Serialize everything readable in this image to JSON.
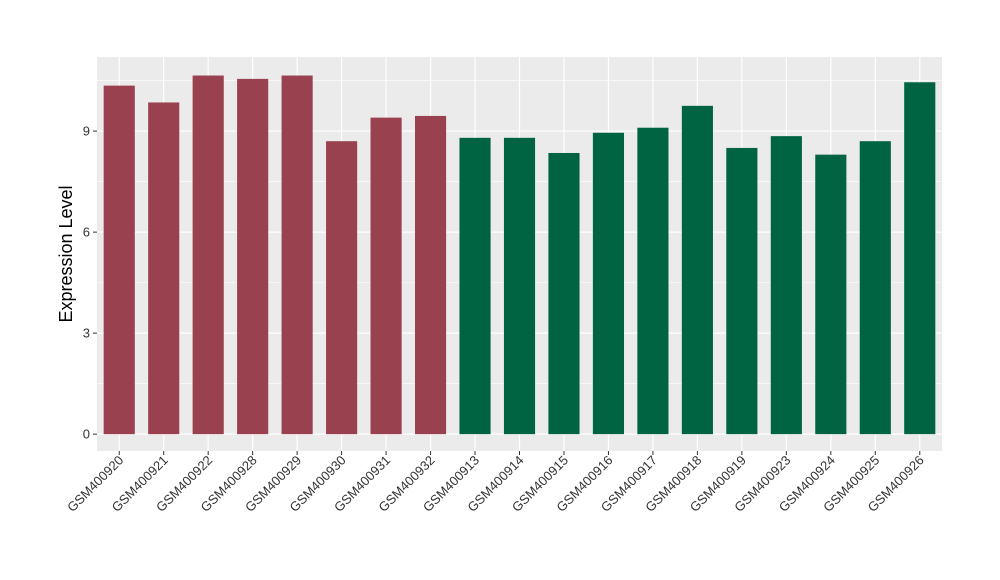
{
  "chart_data": {
    "type": "bar",
    "title": "",
    "xlabel": "",
    "ylabel": "Expression Level",
    "ylim": [
      -0.5,
      11.2
    ],
    "yticks": [
      0,
      3,
      6,
      9
    ],
    "grid": true,
    "legend": "none",
    "panel_background": "#ebebeb",
    "gridline_color": "#ffffff",
    "categories": [
      "GSM400920",
      "GSM400921",
      "GSM400922",
      "GSM400928",
      "GSM400929",
      "GSM400930",
      "GSM400931",
      "GSM400932",
      "GSM400913",
      "GSM400914",
      "GSM400915",
      "GSM400916",
      "GSM400917",
      "GSM400918",
      "GSM400919",
      "GSM400923",
      "GSM400924",
      "GSM400925",
      "GSM400926"
    ],
    "values": [
      10.35,
      9.85,
      10.65,
      10.55,
      10.65,
      8.7,
      9.4,
      9.45,
      8.8,
      8.8,
      8.35,
      8.95,
      9.1,
      9.75,
      8.5,
      8.85,
      8.3,
      8.7,
      10.45
    ],
    "bar_colors": [
      "#9a4150",
      "#9a4150",
      "#9a4150",
      "#9a4150",
      "#9a4150",
      "#9a4150",
      "#9a4150",
      "#9a4150",
      "#006443",
      "#006443",
      "#006443",
      "#006443",
      "#006443",
      "#006443",
      "#006443",
      "#006443",
      "#006443",
      "#006443",
      "#006443"
    ]
  }
}
